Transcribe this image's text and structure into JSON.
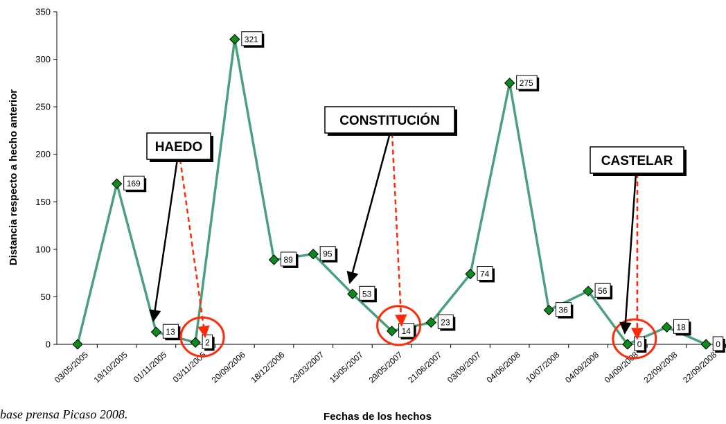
{
  "source_note": "base prensa Picaso 2008.",
  "chart_data": {
    "type": "line",
    "xlabel": "Fechas de los hechos",
    "ylabel": "Distancia respecto a hecho anterior",
    "ylim": [
      0,
      350
    ],
    "yticks": [
      0,
      50,
      100,
      150,
      200,
      250,
      300,
      350
    ],
    "grid": false,
    "legend": "none",
    "line_color": "#4aa07a",
    "marker_color": "#0b8a1e",
    "categories": [
      "03/05/2005",
      "19/10/2005",
      "01/11/2005",
      "03/11/2005",
      "20/09/2006",
      "18/12/2006",
      "23/03/2007",
      "15/05/2007",
      "29/05/2007",
      "21/06/2007",
      "03/09/2007",
      "04/06/2008",
      "10/07/2008",
      "04/09/2008",
      "04/09/2008",
      "22/09/2008",
      "22/09/2008"
    ],
    "x": [
      0,
      1,
      2,
      3,
      4,
      5,
      6,
      7,
      8,
      9,
      10,
      11,
      12,
      13,
      14,
      15,
      16
    ],
    "values": [
      0,
      169,
      13,
      2,
      321,
      89,
      95,
      53,
      14,
      23,
      74,
      275,
      36,
      56,
      0,
      18,
      0
    ],
    "labeled_points": [
      {
        "index": 1,
        "label": "169"
      },
      {
        "index": 2,
        "label": "13"
      },
      {
        "index": 3,
        "label": "2"
      },
      {
        "index": 4,
        "label": "321"
      },
      {
        "index": 5,
        "label": "89"
      },
      {
        "index": 6,
        "label": "95"
      },
      {
        "index": 7,
        "label": "53"
      },
      {
        "index": 8,
        "label": "14"
      },
      {
        "index": 9,
        "label": "23"
      },
      {
        "index": 10,
        "label": "74"
      },
      {
        "index": 11,
        "label": "275"
      },
      {
        "index": 12,
        "label": "36"
      },
      {
        "index": 13,
        "label": "56"
      },
      {
        "index": 14,
        "label": "0"
      },
      {
        "index": 15,
        "label": "18"
      },
      {
        "index": 16,
        "label": "0"
      }
    ],
    "annotations": [
      {
        "text": "HAEDO",
        "solid_arrow_to": 2,
        "dashed_arrow_to": 3,
        "highlight_index": 3
      },
      {
        "text": "CONSTITUCIÓN",
        "solid_arrow_to": 7,
        "dashed_arrow_to": 8,
        "highlight_index": 8
      },
      {
        "text": "CASTELAR",
        "solid_arrow_to": 14,
        "dashed_arrow_to": 14,
        "highlight_index": 14
      }
    ],
    "highlight_color": "#ff2a0a"
  }
}
